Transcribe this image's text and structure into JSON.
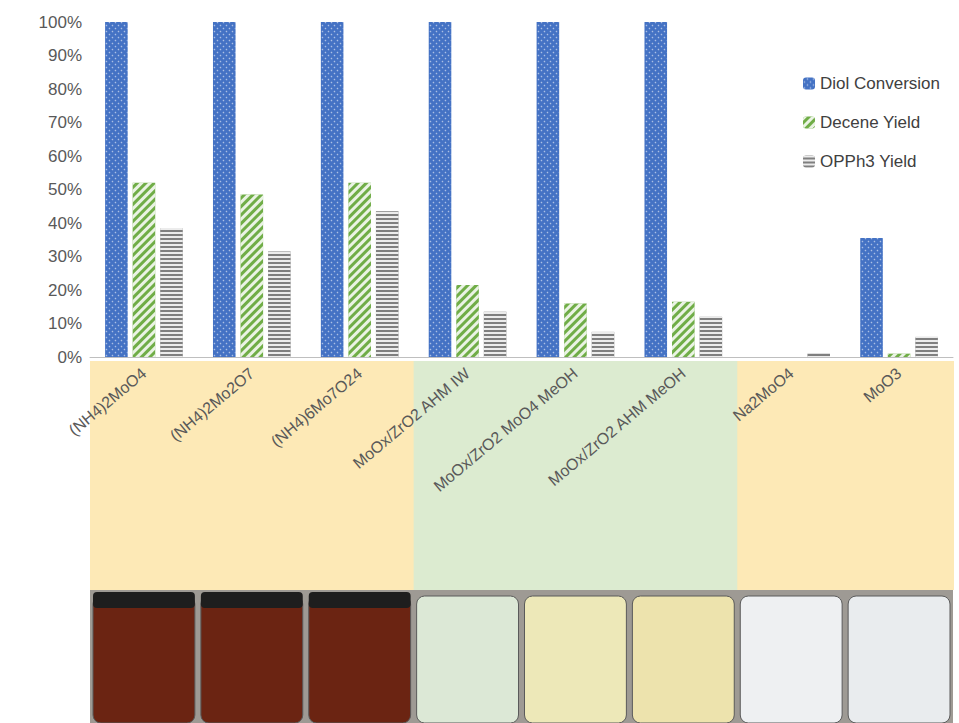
{
  "chart_data": {
    "type": "bar",
    "categories": [
      "(NH4)2MoO4",
      "(NH4)2Mo2O7",
      "(NH4)6Mo7O24",
      "MoOx/ZrO2 AHM IW",
      "MoOx/ZrO2 MoO4 MeOH",
      "MoOx/ZrO2 AHM MeOH",
      "Na2MoO4",
      "MoO3"
    ],
    "series": [
      {
        "name": "Diol Conversion",
        "color": "#4472c4",
        "values": [
          100,
          100,
          100,
          100,
          100,
          100,
          0,
          35.5
        ]
      },
      {
        "name": "Decene Yield",
        "color": "#70ad47",
        "values": [
          52,
          48.5,
          52,
          21.5,
          16,
          16.5,
          0,
          1
        ]
      },
      {
        "name": "OPPh3 Yield",
        "color": "#7f7f7f",
        "values": [
          38.5,
          31.5,
          43.5,
          13.5,
          7.5,
          12,
          1,
          6
        ]
      }
    ],
    "ylim": [
      0,
      100
    ],
    "yticks": [
      {
        "value": 0,
        "label": "0%"
      },
      {
        "value": 10,
        "label": "10%"
      },
      {
        "value": 20,
        "label": "20%"
      },
      {
        "value": 30,
        "label": "30%"
      },
      {
        "value": 40,
        "label": "40%"
      },
      {
        "value": 50,
        "label": "50%"
      },
      {
        "value": 60,
        "label": "60%"
      },
      {
        "value": 70,
        "label": "70%"
      },
      {
        "value": 80,
        "label": "80%"
      },
      {
        "value": 90,
        "label": "90%"
      },
      {
        "value": 100,
        "label": "100%"
      }
    ],
    "grid": false,
    "legend": "upper right"
  }
}
